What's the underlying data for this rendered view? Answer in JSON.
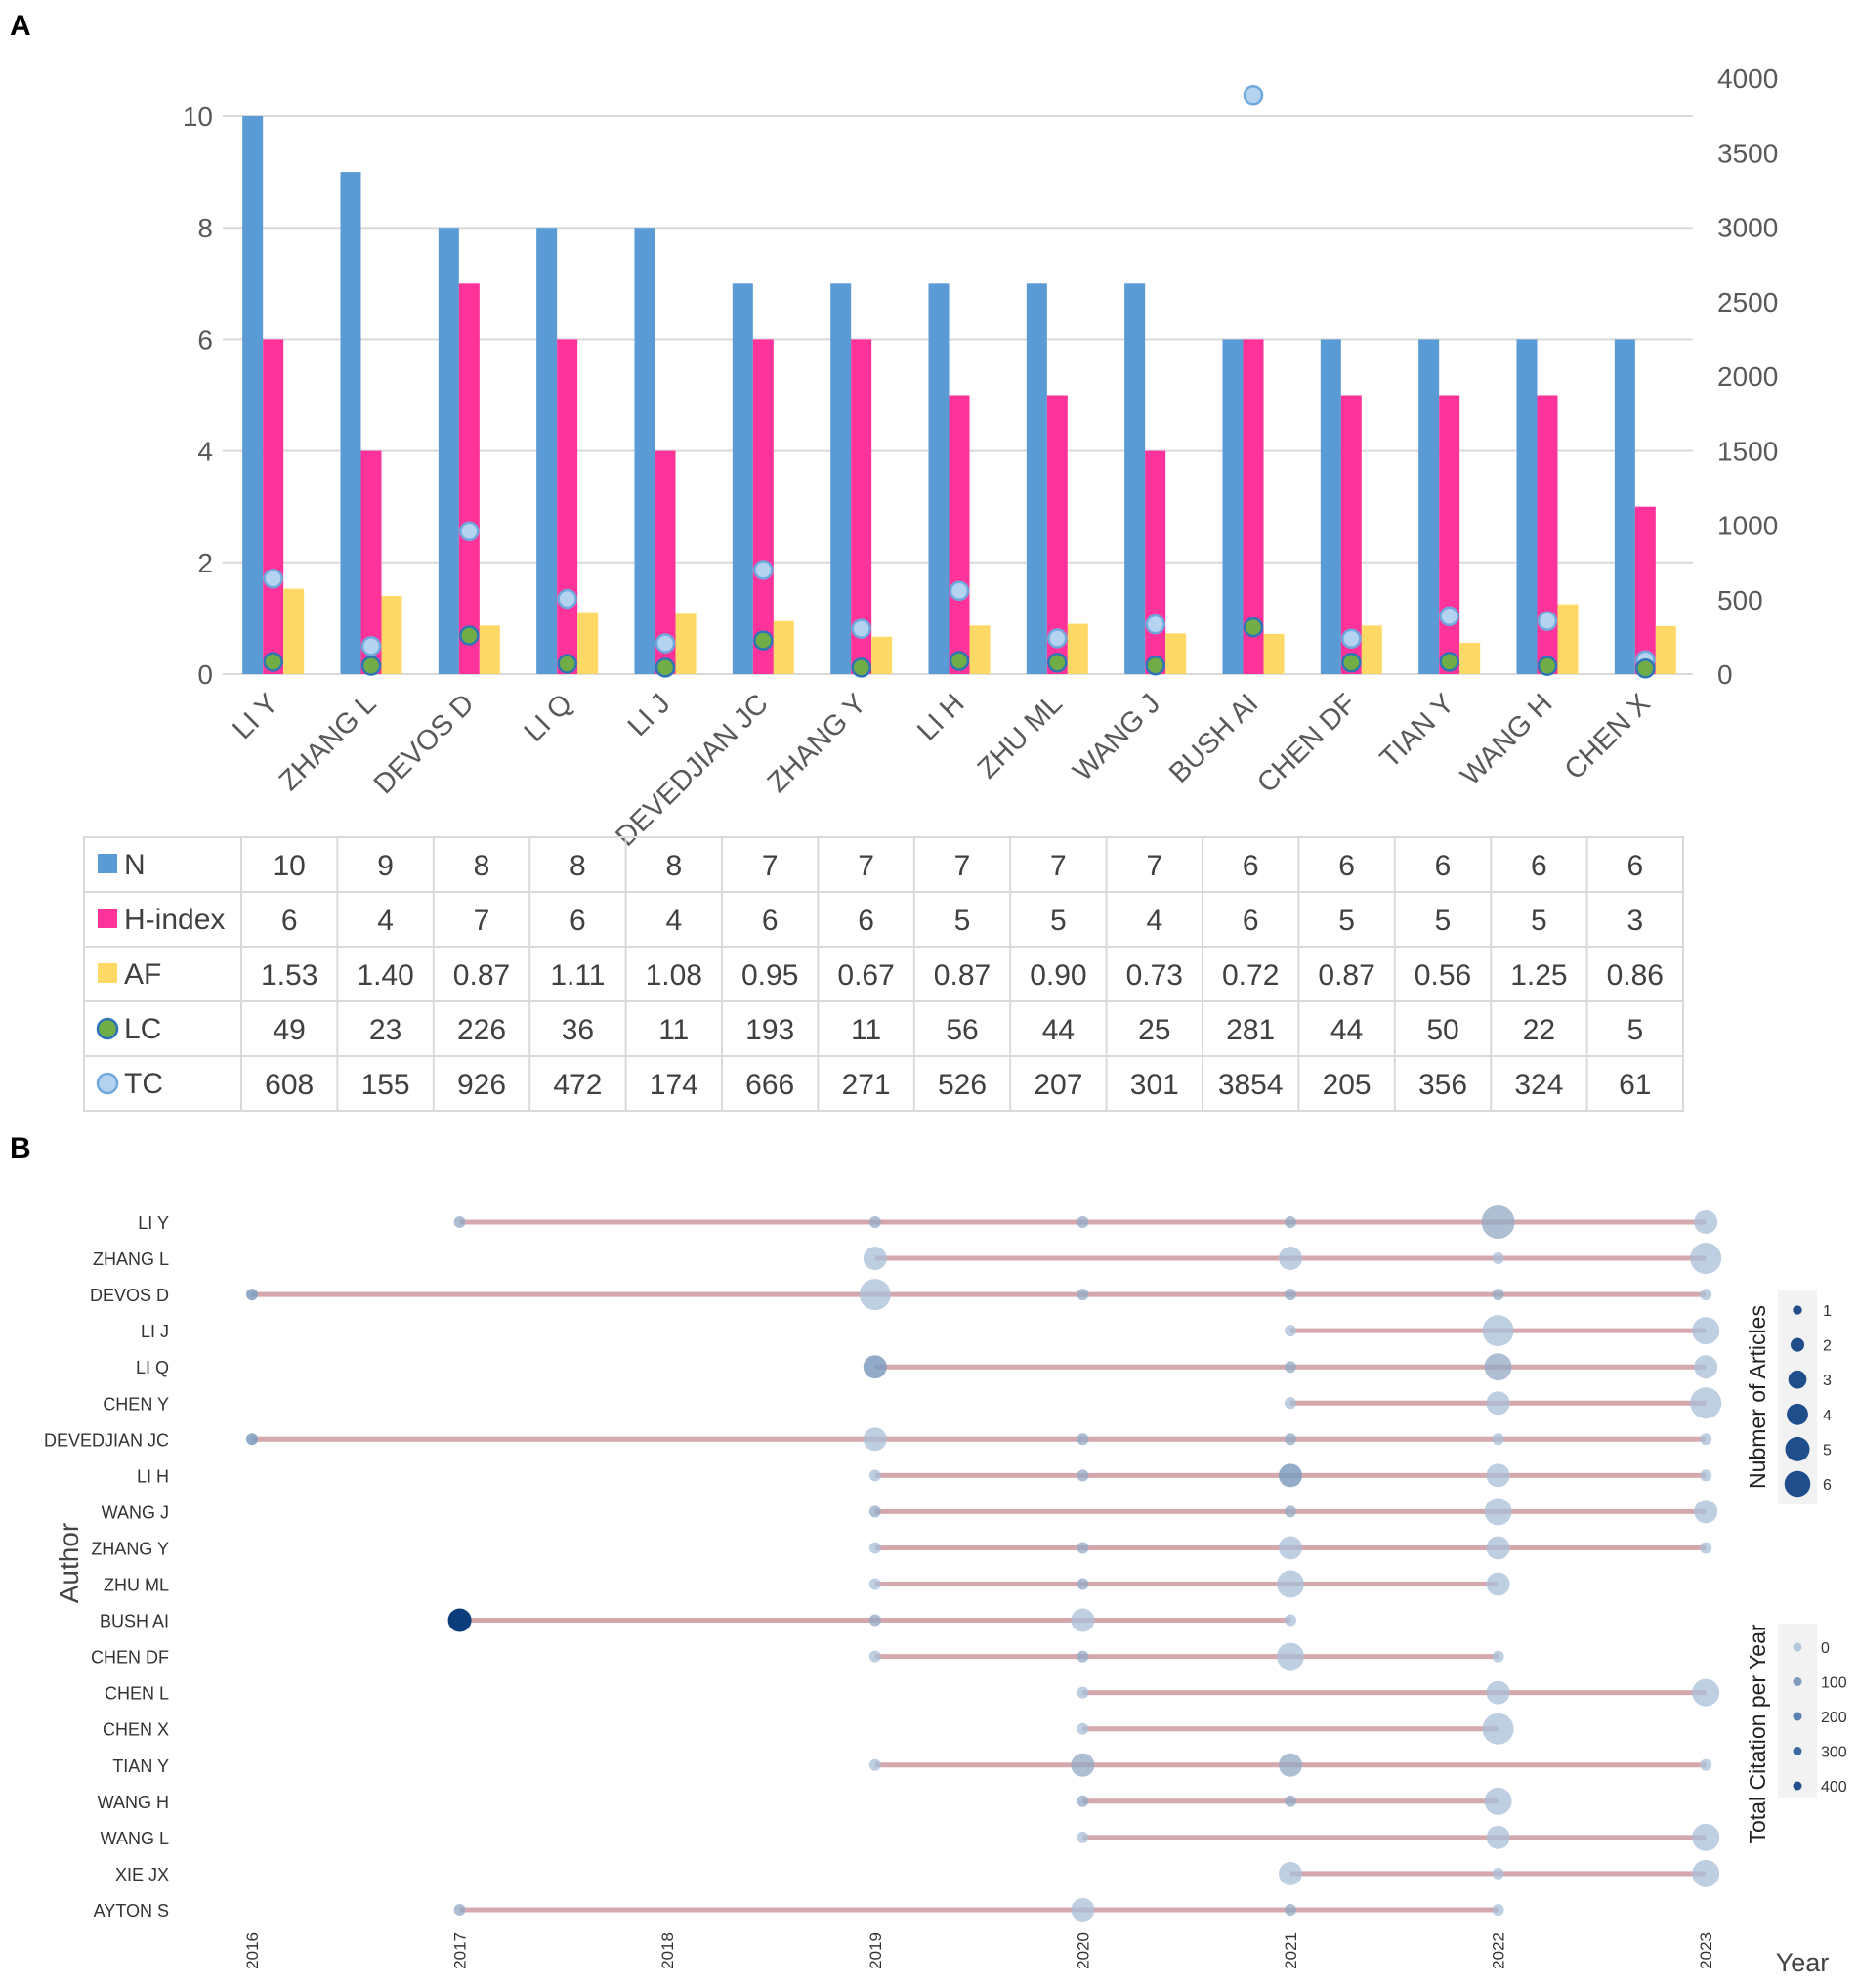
{
  "panels": {
    "a_label": "A",
    "b_label": "B"
  },
  "chart_data": [
    {
      "type": "bar",
      "panel": "A",
      "categories": [
        "LI Y",
        "ZHANG L",
        "DEVOS D",
        "LI Q",
        "LI J",
        "DEVEDJIAN JC",
        "ZHANG Y",
        "LI H",
        "ZHU ML",
        "WANG J",
        "BUSH AI",
        "CHEN DF",
        "TIAN Y",
        "WANG H",
        "CHEN X"
      ],
      "series": [
        {
          "key": "N",
          "name": "N",
          "axis": "left",
          "kind": "bar",
          "color": "#5b9bd5",
          "values": [
            10,
            9,
            8,
            8,
            8,
            7,
            7,
            7,
            7,
            7,
            6,
            6,
            6,
            6,
            6
          ],
          "labels": [
            "10",
            "9",
            "8",
            "8",
            "8",
            "7",
            "7",
            "7",
            "7",
            "7",
            "6",
            "6",
            "6",
            "6",
            "6"
          ]
        },
        {
          "key": "H",
          "name": "H-index",
          "axis": "left",
          "kind": "bar",
          "color": "#ff3399",
          "values": [
            6,
            4,
            7,
            6,
            4,
            6,
            6,
            5,
            5,
            4,
            6,
            5,
            5,
            5,
            3
          ],
          "labels": [
            "6",
            "4",
            "7",
            "6",
            "4",
            "6",
            "6",
            "5",
            "5",
            "4",
            "6",
            "5",
            "5",
            "5",
            "3"
          ]
        },
        {
          "key": "AF",
          "name": "AF",
          "axis": "left",
          "kind": "bar",
          "color": "#ffd966",
          "values": [
            1.53,
            1.4,
            0.87,
            1.11,
            1.08,
            0.95,
            0.67,
            0.87,
            0.9,
            0.73,
            0.72,
            0.87,
            0.56,
            1.25,
            0.86
          ],
          "labels": [
            "1.53",
            "1.40",
            "0.87",
            "1.11",
            "1.08",
            "0.95",
            "0.67",
            "0.87",
            "0.90",
            "0.73",
            "0.72",
            "0.87",
            "0.56",
            "1.25",
            "0.86"
          ]
        },
        {
          "key": "LC",
          "name": "LC",
          "axis": "right",
          "kind": "marker",
          "color": "#70ad47",
          "values": [
            49,
            23,
            226,
            36,
            11,
            193,
            11,
            56,
            44,
            25,
            281,
            44,
            50,
            22,
            5
          ],
          "labels": [
            "49",
            "23",
            "226",
            "36",
            "11",
            "193",
            "11",
            "56",
            "44",
            "25",
            "281",
            "44",
            "50",
            "22",
            "5"
          ]
        },
        {
          "key": "TC",
          "name": "TC",
          "axis": "right",
          "kind": "marker",
          "color": "#9dc3e6",
          "values": [
            608,
            155,
            926,
            472,
            174,
            666,
            271,
            526,
            207,
            301,
            3854,
            205,
            356,
            324,
            61
          ],
          "labels": [
            "608",
            "155",
            "926",
            "472",
            "174",
            "666",
            "271",
            "526",
            "207",
            "301",
            "3854",
            "205",
            "356",
            "324",
            "61"
          ]
        }
      ],
      "left_axis": {
        "min": 0,
        "max": 10,
        "ticks": [
          "0",
          "2",
          "4",
          "6",
          "8",
          "10"
        ]
      },
      "right_axis": {
        "min": 0,
        "max": 4000,
        "ticks": [
          "0",
          "500",
          "1000",
          "1500",
          "2000",
          "2500",
          "3000",
          "3500",
          "4000"
        ]
      },
      "grid": true,
      "legend": "data-table-below"
    },
    {
      "type": "scatter",
      "panel": "B",
      "xlabel": "Year",
      "ylabel": "Author",
      "years": [
        "2016",
        "2017",
        "2018",
        "2019",
        "2020",
        "2021",
        "2022",
        "2023"
      ],
      "authors": [
        {
          "name": "LI Y",
          "span": [
            2017,
            2023
          ],
          "points": [
            [
              2017,
              1,
              20
            ],
            [
              2019,
              1,
              30
            ],
            [
              2020,
              1,
              20
            ],
            [
              2021,
              1,
              20
            ],
            [
              2022,
              6,
              20
            ],
            [
              2023,
              3,
              0
            ]
          ]
        },
        {
          "name": "ZHANG L",
          "span": [
            2019,
            2023
          ],
          "points": [
            [
              2019,
              3,
              5
            ],
            [
              2021,
              3,
              5
            ],
            [
              2022,
              1,
              5
            ],
            [
              2023,
              5,
              2
            ]
          ]
        },
        {
          "name": "DEVOS D",
          "span": [
            2016,
            2023
          ],
          "points": [
            [
              2016,
              1,
              50
            ],
            [
              2019,
              5,
              5
            ],
            [
              2020,
              1,
              20
            ],
            [
              2021,
              1,
              30
            ],
            [
              2022,
              1,
              20
            ],
            [
              2023,
              1,
              10
            ]
          ]
        },
        {
          "name": "LI J",
          "span": [
            2021,
            2023
          ],
          "points": [
            [
              2021,
              1,
              5
            ],
            [
              2022,
              5,
              5
            ],
            [
              2023,
              4,
              0
            ]
          ]
        },
        {
          "name": "LI Q",
          "span": [
            2019,
            2023
          ],
          "points": [
            [
              2019,
              3,
              60
            ],
            [
              2021,
              1,
              20
            ],
            [
              2022,
              4,
              30
            ],
            [
              2023,
              3,
              0
            ]
          ]
        },
        {
          "name": "CHEN Y",
          "span": [
            2021,
            2023
          ],
          "points": [
            [
              2021,
              1,
              5
            ],
            [
              2022,
              3,
              5
            ],
            [
              2023,
              5,
              0
            ]
          ]
        },
        {
          "name": "DEVEDJIAN JC",
          "span": [
            2016,
            2023
          ],
          "points": [
            [
              2016,
              1,
              40
            ],
            [
              2019,
              3,
              5
            ],
            [
              2020,
              1,
              20
            ],
            [
              2021,
              1,
              20
            ],
            [
              2022,
              1,
              10
            ],
            [
              2023,
              1,
              5
            ]
          ]
        },
        {
          "name": "LI H",
          "span": [
            2019,
            2023
          ],
          "points": [
            [
              2019,
              1,
              5
            ],
            [
              2020,
              1,
              20
            ],
            [
              2021,
              3,
              60
            ],
            [
              2022,
              3,
              5
            ],
            [
              2023,
              1,
              5
            ]
          ]
        },
        {
          "name": "WANG J",
          "span": [
            2019,
            2023
          ],
          "points": [
            [
              2019,
              1,
              20
            ],
            [
              2021,
              1,
              20
            ],
            [
              2022,
              4,
              5
            ],
            [
              2023,
              3,
              5
            ]
          ]
        },
        {
          "name": "ZHANG Y",
          "span": [
            2019,
            2023
          ],
          "points": [
            [
              2019,
              1,
              10
            ],
            [
              2020,
              1,
              20
            ],
            [
              2021,
              3,
              5
            ],
            [
              2022,
              3,
              5
            ],
            [
              2023,
              1,
              5
            ]
          ]
        },
        {
          "name": "ZHU ML",
          "span": [
            2019,
            2022
          ],
          "points": [
            [
              2019,
              1,
              5
            ],
            [
              2020,
              1,
              20
            ],
            [
              2021,
              4,
              5
            ],
            [
              2022,
              3,
              5
            ]
          ]
        },
        {
          "name": "BUSH AI",
          "span": [
            2017,
            2021
          ],
          "points": [
            [
              2017,
              3,
              450
            ],
            [
              2019,
              1,
              20
            ],
            [
              2020,
              3,
              5
            ],
            [
              2021,
              1,
              5
            ]
          ]
        },
        {
          "name": "CHEN DF",
          "span": [
            2019,
            2022
          ],
          "points": [
            [
              2019,
              1,
              5
            ],
            [
              2020,
              1,
              20
            ],
            [
              2021,
              4,
              5
            ],
            [
              2022,
              1,
              5
            ]
          ]
        },
        {
          "name": "CHEN L",
          "span": [
            2020,
            2023
          ],
          "points": [
            [
              2020,
              1,
              5
            ],
            [
              2022,
              3,
              5
            ],
            [
              2023,
              4,
              5
            ]
          ]
        },
        {
          "name": "CHEN X",
          "span": [
            2020,
            2022
          ],
          "points": [
            [
              2020,
              1,
              5
            ],
            [
              2022,
              5,
              5
            ]
          ]
        },
        {
          "name": "TIAN Y",
          "span": [
            2019,
            2023
          ],
          "points": [
            [
              2019,
              1,
              5
            ],
            [
              2020,
              3,
              20
            ],
            [
              2021,
              3,
              20
            ],
            [
              2023,
              1,
              5
            ]
          ]
        },
        {
          "name": "WANG H",
          "span": [
            2020,
            2022
          ],
          "points": [
            [
              2020,
              1,
              20
            ],
            [
              2021,
              1,
              20
            ],
            [
              2022,
              4,
              5
            ]
          ]
        },
        {
          "name": "WANG L",
          "span": [
            2020,
            2023
          ],
          "points": [
            [
              2020,
              1,
              5
            ],
            [
              2022,
              3,
              5
            ],
            [
              2023,
              4,
              5
            ]
          ]
        },
        {
          "name": "XIE JX",
          "span": [
            2021,
            2023
          ],
          "points": [
            [
              2021,
              3,
              5
            ],
            [
              2022,
              1,
              5
            ],
            [
              2023,
              4,
              5
            ]
          ]
        },
        {
          "name": "AYTON S",
          "span": [
            2017,
            2022
          ],
          "points": [
            [
              2017,
              1,
              20
            ],
            [
              2020,
              3,
              5
            ],
            [
              2021,
              1,
              20
            ],
            [
              2022,
              1,
              5
            ]
          ]
        }
      ],
      "point_format": [
        "year",
        "articles",
        "total_citation_per_year"
      ],
      "legend_articles": {
        "title": "Nubmer of Articles",
        "values": [
          "1",
          "2",
          "3",
          "4",
          "5",
          "6"
        ]
      },
      "legend_tc": {
        "title": "Total Citation per Year",
        "values": [
          "0",
          "100",
          "200",
          "300",
          "400"
        ]
      },
      "line_color": "#d4a8ad",
      "point_color_low": "#b4c7dc",
      "point_color_high": "#0b3d7a"
    }
  ]
}
